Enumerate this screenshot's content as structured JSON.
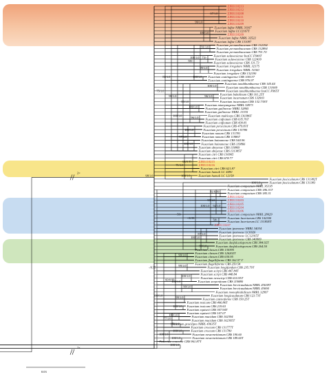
{
  "colors": {
    "orange": "#f7c9a8",
    "orange_top": "#f0a37a",
    "yellow": "#f8e58a",
    "blue": "#c7dcf1",
    "green": "#cfe6bd",
    "new_taxa": "#cc1f1f"
  },
  "scale_bar": "0.03",
  "break_labels": [
    "2×",
    "2×"
  ],
  "taxa": [
    {
      "t": "ZJB3110213",
      "r": 1
    },
    {
      "t": "ZJB3110212",
      "r": 1
    },
    {
      "t": "ZJB3110208",
      "r": 1
    },
    {
      "t": "ZJB3110211",
      "r": 1
    },
    {
      "t": "ZJB3110210",
      "r": 1
    },
    {
      "t": "ZJB3110209",
      "r": 1
    },
    {
      "t": "Fusarium luffae NRRL 31167"
    },
    {
      "t": "Fusarium luffae LC12167T"
    },
    {
      "t": "ZJB3110209",
      "r": 1
    },
    {
      "t": "Fusarium luffae NRRL 32522"
    },
    {
      "t": "Fusarium luffae CBS 131097"
    },
    {
      "t": "Fusarium pernambucanum CBS 132194"
    },
    {
      "t": "Fusarium pernambucanum CBS 132894"
    },
    {
      "t": "Fusarium pernambucanum CBS 791.70"
    },
    {
      "t": "Fusarium sulawesiense InaCC F940T"
    },
    {
      "t": "Fusarium sulawesiense CBS 122439"
    },
    {
      "t": "Fusarium sulawesiense CBS 131.73"
    },
    {
      "t": "Fusarium irregulare NRRL 32175"
    },
    {
      "t": "Fusarium irregulare NRRL 31160"
    },
    {
      "t": "Fusarium irregulare CBS 132190"
    },
    {
      "t": "Fusarium caatingaense CBS 100137"
    },
    {
      "t": "Fusarium caatingaense CBS 976.97"
    },
    {
      "t": "Fusarium tanahbumbuense CBS 145.44"
    },
    {
      "t": "Fusarium tanahbumbuense CBS 131009"
    },
    {
      "t": "Fusarium tanahbumbuense InaCC F965T"
    },
    {
      "t": "Fusarium bubalinum CBS 161.25T"
    },
    {
      "t": "Fusarium incarnatum CBS 132903"
    },
    {
      "t": "Fusarium incarnatum CBS 132.73NT"
    },
    {
      "t": "Fusarium mianyangense NRRL 54973"
    },
    {
      "t": "Fusarium guilinense NRRL 32865"
    },
    {
      "t": "Fusarium guilinense NRRL 13335"
    },
    {
      "t": "Fusarium multiceps CBS 130386T"
    },
    {
      "t": "Fusarium coffeatum CBS 635.76T"
    },
    {
      "t": "Fusarium coffeatum CBS 430.81"
    },
    {
      "t": "Fusarium persicinum CBS 479.83T"
    },
    {
      "t": "Fusarium persicinum CBS 133780"
    },
    {
      "t": "Fusarium nanum CBS 131781"
    },
    {
      "t": "Fusarium nanum CBS 119867"
    },
    {
      "t": "Fusarium hainanense CBS 544.96"
    },
    {
      "t": "Fusarium hainanense CBS 119866"
    },
    {
      "t": "Fusarium ubeyense CBS 119869"
    },
    {
      "t": "Fusarium ubeyense CBS 131385T"
    },
    {
      "t": "Fusarium citri CBS 130905"
    },
    {
      "t": "Fusarium citri CBS 678.77"
    },
    {
      "t": "ZJB3110215",
      "r": 1
    },
    {
      "t": "ZJB3110216",
      "r": 1
    },
    {
      "t": "Fusarium citri CBS 621.87"
    },
    {
      "t": "Fusarium humuli LC 4490"
    },
    {
      "t": "Fusarium humuli LC 12158"
    },
    {
      "t": "Fusarium fasciculatum CBS 131382T"
    },
    {
      "t": "Fusarium fasciculatum CBS 131383"
    },
    {
      "t": "Fusarium compactum NRRL 36318"
    },
    {
      "t": "Fusarium compactum CBS 186.31T"
    },
    {
      "t": "Fusarium compactum CBS 185.31"
    },
    {
      "t": "ZJB3110202",
      "r": 1
    },
    {
      "t": "ZJB3110203",
      "r": 1
    },
    {
      "t": "ZJB3110205",
      "r": 1
    },
    {
      "t": "ZJB3110204",
      "r": 1
    },
    {
      "t": "ZJB3110206",
      "r": 1
    },
    {
      "t": "Fusarium compactum NRRL 28029"
    },
    {
      "t": "Fusarium lacertarum CBS 102300"
    },
    {
      "t": "Fusarium lacertarum LC 13185ET"
    },
    {
      "t": "ZJB3110207",
      "r": 1
    },
    {
      "t": "Fusarium ipomoeae NRRL 34034"
    },
    {
      "t": "Fusarium ipomoeae LC6926"
    },
    {
      "t": "Fusarium ipomoeae LC12165T"
    },
    {
      "t": "Fusarium ipomoeae CBS 140909"
    },
    {
      "t": "Fusarium duofalcatisporum CBS 384.92T"
    },
    {
      "t": "Fusarium duofalcatisporum CBS 264.50"
    },
    {
      "t": "Fusarium clavum CBS 130395"
    },
    {
      "t": "Fusarium clavum CBS 126202T"
    },
    {
      "t": "Fusarium clavum CBS 630.95"
    },
    {
      "t": "Fusarium flagelliforme CBS 162.57 T"
    },
    {
      "t": "Fusarium flagelliforme CBS 259.54"
    },
    {
      "t": "Fusarium longifundum CBS 235.79T"
    },
    {
      "t": "Fusarium scirpi CBS 447.84T"
    },
    {
      "t": "Fusarium scirpi CBS 448.84"
    },
    {
      "t": "Fusarium neoscirpi CBS 610.95T"
    },
    {
      "t": "Fusarium serpentinum CBS 119880"
    },
    {
      "t": "Fusarium brevicaudatum NRRL 43638T"
    },
    {
      "t": "Fusarium brevicaudatum NRRL 43694"
    },
    {
      "t": "Fusarium monophialidicum NRRL 32997"
    },
    {
      "t": "Fusarium longicaudatum CBS 123.73T"
    },
    {
      "t": "Fusarium catenoforme CBS 150.25T"
    },
    {
      "t": "Fusarium toxicum CBS 406.86T"
    },
    {
      "t": "Fusarium toxicum CBS 219.63"
    },
    {
      "t": "Fusarium equiseti CBS 307.94T"
    },
    {
      "t": "Fusarium equiseti CBS 107.07"
    },
    {
      "t": "Fusarium mucidum CBS 102394"
    },
    {
      "t": "Fusarium mucidum CBS 102395T"
    },
    {
      "t": "Fusarium gracilipes NRRL 43635T"
    },
    {
      "t": "Fusarium croceum CBS 131777T"
    },
    {
      "t": "Fusarium croceum CBS 131780"
    },
    {
      "t": "Fusarium nessemettianum CBS 190.60"
    },
    {
      "t": "Fusarium nessemettianum CBS 189.60T"
    },
    {
      "t": "Fusarium concolor CBS 961.87T"
    }
  ],
  "supports": [
    "67/1.0",
    "100/1.0",
    "79/-",
    "99/1.0",
    "91/1.0",
    "100/1.0",
    "73/-",
    "99/1.0",
    "100/1.0",
    "59/-",
    "100/1.0",
    "96/1.0",
    "100/1.0",
    "96/1.0",
    "85/1.0",
    "82/1.0",
    "100/1.0",
    "100/1.0",
    "97/1.0",
    "100/1.0",
    "99/1.0",
    "80/1.0",
    "100/1.0",
    "98/1.0",
    "98/1.0",
    "75/1.0",
    "63/0.95",
    "71/1.0",
    "100/1.0",
    "100/1.0",
    "59/-",
    "100/1.0",
    "81/0.99",
    "92/1.0",
    "99/1.0",
    "58/-",
    "100/1.0",
    "-/0.99",
    "100/1.0",
    "87/1.0",
    "99/1.0",
    "65/-",
    "99/1.0",
    "99/1.0",
    "60/0.99",
    "-/0.95",
    "100/1.0",
    "100/1.0",
    "99/1.0",
    "93/1.0",
    "56/-",
    "99/1.0",
    "88/1.0",
    "100/1.0",
    "100/1.0",
    "100/1.0",
    "77/1.0",
    "100/1.0",
    "100/1.0",
    "100/1.0",
    "100/1.0",
    "100/1.0",
    "100/1.0",
    "100/1.0"
  ]
}
